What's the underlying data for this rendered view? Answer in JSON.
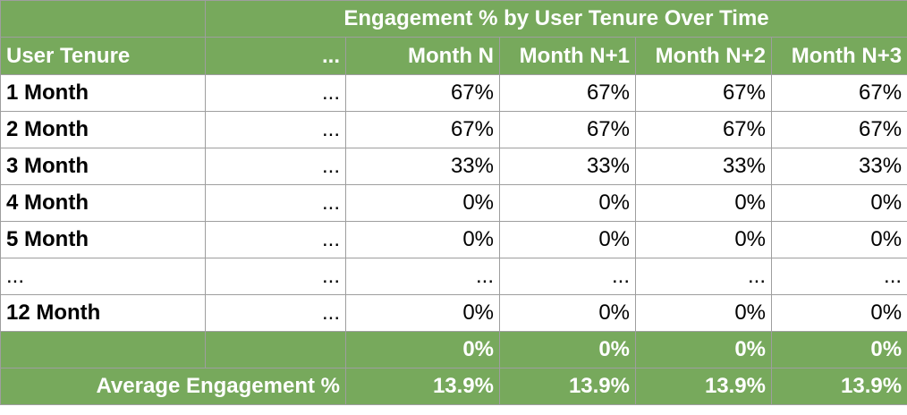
{
  "colors": {
    "header_green": "#77a95c",
    "header_text": "#ffffff",
    "grid": "#9e9e9e"
  },
  "table": {
    "title": "Engagement % by User Tenure Over Time",
    "tenure_header": "User Tenure",
    "ellipsis_header": "...",
    "months": [
      "Month N",
      "Month N+1",
      "Month N+2",
      "Month N+3"
    ],
    "rows": [
      {
        "tenure": "1 Month",
        "gap": "...",
        "values": [
          "67%",
          "67%",
          "67%",
          "67%"
        ]
      },
      {
        "tenure": "2 Month",
        "gap": "...",
        "values": [
          "67%",
          "67%",
          "67%",
          "67%"
        ]
      },
      {
        "tenure": "3 Month",
        "gap": "...",
        "values": [
          "33%",
          "33%",
          "33%",
          "33%"
        ]
      },
      {
        "tenure": "4 Month",
        "gap": "...",
        "values": [
          "0%",
          "0%",
          "0%",
          "0%"
        ]
      },
      {
        "tenure": "5 Month",
        "gap": "...",
        "values": [
          "0%",
          "0%",
          "0%",
          "0%"
        ]
      },
      {
        "tenure": "...",
        "gap": "...",
        "values": [
          "...",
          "...",
          "...",
          "..."
        ]
      },
      {
        "tenure": "12 Month",
        "gap": "...",
        "values": [
          "0%",
          "0%",
          "0%",
          "0%"
        ]
      }
    ],
    "totals_row": [
      "0%",
      "0%",
      "0%",
      "0%"
    ],
    "average_label": "Average Engagement %",
    "averages": [
      "13.9%",
      "13.9%",
      "13.9%",
      "13.9%"
    ]
  }
}
